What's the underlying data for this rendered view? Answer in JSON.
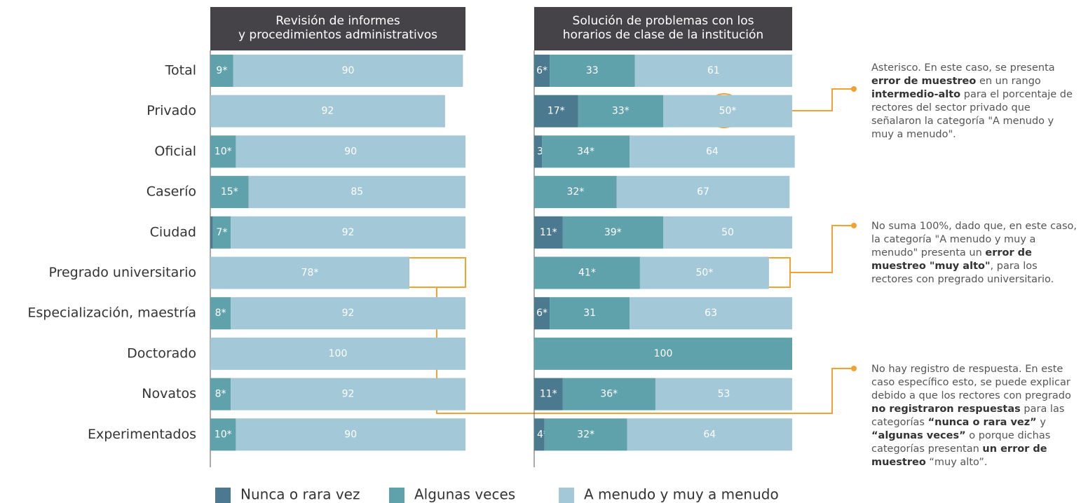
{
  "chart_data": {
    "type": "bar",
    "orientation": "horizontal",
    "stacked": true,
    "categories": [
      "Total",
      "Privado",
      "Oficial",
      "Caserío",
      "Ciudad",
      "Pregrado universitario",
      "Especialización, maestría",
      "Doctorado",
      "Novatos",
      "Experimentados"
    ],
    "series": [
      {
        "name": "Nunca o rara vez",
        "color": "#4b7a90"
      },
      {
        "name": "Algunas veces",
        "color": "#5fa2ab"
      },
      {
        "name": "A menudo y muy a menudo",
        "color": "#a3c8d7"
      }
    ],
    "panels": [
      {
        "title": [
          "Revisión de informes",
          "y procedimientos administrativos"
        ],
        "xlim": [
          0,
          100
        ],
        "series": [
          {
            "values": [
              0,
              null,
              null,
              null,
              1,
              null,
              null,
              null,
              null,
              null
            ],
            "value_labels": [
              null,
              null,
              null,
              null,
              null,
              null,
              null,
              null,
              null,
              null
            ]
          },
          {
            "values": [
              9,
              null,
              10,
              15,
              7,
              null,
              8,
              null,
              8,
              10
            ],
            "value_labels": [
              "9*",
              null,
              "10*",
              "15*",
              "7*",
              null,
              "8*",
              null,
              "8*",
              "10*"
            ]
          },
          {
            "values": [
              90,
              92,
              90,
              85,
              92,
              78,
              92,
              100,
              92,
              90
            ],
            "value_labels": [
              null,
              null,
              null,
              null,
              null,
              "78*",
              null,
              null,
              null,
              null
            ]
          }
        ]
      },
      {
        "title": [
          "Solución de problemas con los",
          "horarios de clase de la institución"
        ],
        "xlim": [
          0,
          100
        ],
        "series": [
          {
            "values": [
              6,
              17,
              3,
              null,
              11,
              null,
              6,
              null,
              11,
              4
            ],
            "value_labels": [
              "6*",
              "17*",
              "3*",
              null,
              "11*",
              null,
              "6*",
              null,
              "11*",
              "4*"
            ]
          },
          {
            "values": [
              33,
              33,
              34,
              32,
              39,
              41,
              31,
              100,
              36,
              32
            ],
            "value_labels": [
              null,
              "33*",
              "34*",
              "32*",
              "39*",
              "41*",
              null,
              null,
              "36*",
              "32*"
            ]
          },
          {
            "values": [
              61,
              50,
              64,
              67,
              50,
              50,
              63,
              null,
              53,
              64
            ],
            "value_labels": [
              null,
              "50*",
              null,
              null,
              null,
              "50*",
              null,
              null,
              null,
              null
            ]
          }
        ]
      }
    ],
    "annotations": [
      [
        {
          "text": "Asterisco. En este caso, se presenta "
        },
        {
          "text": "error de muestreo",
          "bold": true
        },
        {
          "text": " en un rango "
        },
        {
          "text": "intermedio-alto",
          "bold": true
        },
        {
          "text": " para el porcentaje de rectores del sector privado que señalaron la categoría \"A menudo y muy a menudo\"."
        }
      ],
      [
        {
          "text": "No suma 100%, dado que, en este caso, la categoría \"A menudo y muy a menudo\" presenta un "
        },
        {
          "text": "error de muestreo \"muy alto\"",
          "bold": true
        },
        {
          "text": ", para los rectores con pregrado universitario."
        }
      ],
      [
        {
          "text": "No hay registro de respuesta. En este caso específico esto, se puede explicar debido a que los rectores con pregrado "
        },
        {
          "text": "no registraron respuestas",
          "bold": true
        },
        {
          "text": " para las categorías "
        },
        {
          "text": "“nunca o rara vez”",
          "bold": true
        },
        {
          "text": " y "
        },
        {
          "text": "“algunas veces”",
          "bold": true
        },
        {
          "text": " o porque dichas categorías presentan "
        },
        {
          "text": "un error de muestreo",
          "bold": true
        },
        {
          "text": " “muy alto”."
        }
      ]
    ]
  }
}
